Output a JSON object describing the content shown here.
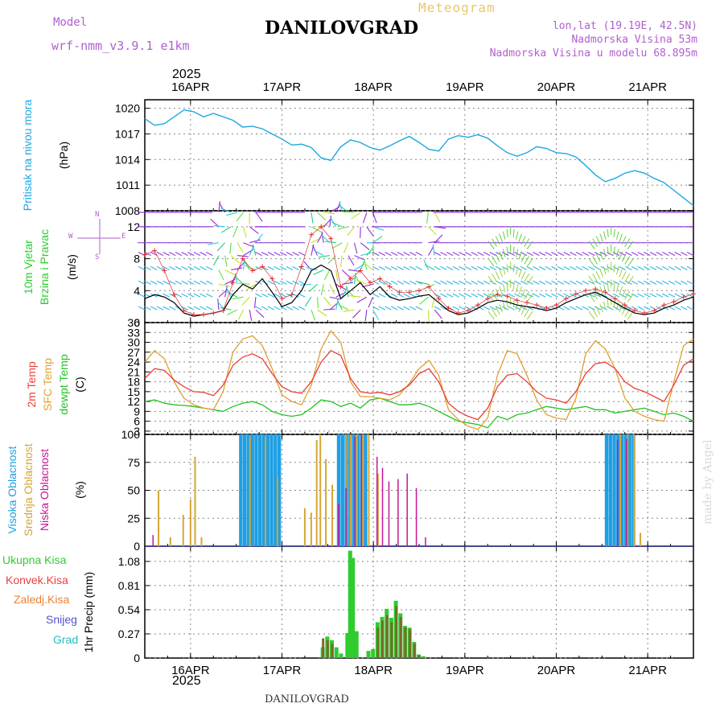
{
  "header": {
    "meteogram_label": "Meteogram",
    "station": "DANILOVGRAD",
    "model_label": "Model",
    "model_name": "wrf-nmm_v3.9.1 e1km",
    "lonlat": "lon,lat (19.19E, 42.5N)",
    "elevation": "Nadmorska Visina 53m",
    "model_elevation": "Nadmorska Visina u modelu 68.895m",
    "footer_station": "DANILOVGRAD",
    "credit": "made by Angel"
  },
  "colors": {
    "pressure": "#1ea7e1",
    "t2m": "#e8403a",
    "sfc": "#e0a030",
    "dewpt": "#22c422",
    "high_cloud": "#1e9fe3",
    "mid_cloud": "#d6a632",
    "low_cloud": "#c4169a",
    "total_precip": "#2ecc2e",
    "conv_precip": "#e84040",
    "frz_precip": "#f08030",
    "snow": "#5050d8",
    "hail": "#20c0c0",
    "wind_speed": "#000000",
    "gust": "#e03030",
    "compass": "#b060d0"
  },
  "chart_data": [
    {
      "type": "line",
      "panel": "pressure",
      "ylabel": "Pritisak na nivou mora",
      "unit": "(hPa)",
      "x_start_day": 15.5,
      "x_end_day": 21.5,
      "xticks": [
        "16APR",
        "17APR",
        "18APR",
        "19APR",
        "20APR",
        "21APR"
      ],
      "year": "2025",
      "yticks": [
        1008,
        1011,
        1014,
        1017,
        1020
      ],
      "ylim": [
        1008,
        1021
      ],
      "series": [
        {
          "values": [
            1018.8,
            1018.0,
            1018.2,
            1019.0,
            1019.8,
            1019.6,
            1019.0,
            1019.4,
            1019.0,
            1018.6,
            1017.8,
            1017.9,
            1017.6,
            1017.0,
            1016.4,
            1015.7,
            1015.8,
            1015.4,
            1014.2,
            1013.9,
            1015.5,
            1016.3,
            1016.0,
            1015.4,
            1015.1,
            1015.6,
            1016.2,
            1016.7,
            1016.0,
            1015.2,
            1015.0,
            1016.4,
            1016.8,
            1016.6,
            1016.9,
            1016.5,
            1015.6,
            1014.8,
            1014.4,
            1014.8,
            1015.5,
            1015.3,
            1014.8,
            1014.7,
            1014.3,
            1013.3,
            1012.2,
            1011.4,
            1011.8,
            1012.4,
            1012.7,
            1012.4,
            1011.8,
            1011.3,
            1010.4,
            1009.5,
            1008.6
          ]
        }
      ]
    },
    {
      "type": "line",
      "panel": "wind",
      "ylabel_1": "10m Vjetar",
      "ylabel_2": "Brzina i Pravac",
      "unit": "(m/s)",
      "compass": {
        "north": "N",
        "south": "S",
        "west": "W",
        "east": "E"
      },
      "yticks": [
        0,
        4,
        8,
        12
      ],
      "ylim": [
        0,
        14
      ],
      "series": [
        {
          "name": "speed",
          "values": [
            3.0,
            3.5,
            3.2,
            2.5,
            1.2,
            0.8,
            1.0,
            1.2,
            1.5,
            3.5,
            4.8,
            4.2,
            5.5,
            3.8,
            2.0,
            2.5,
            4.0,
            6.5,
            7.2,
            6.5,
            3.0,
            4.0,
            5.0,
            3.5,
            4.5,
            3.2,
            2.8,
            3.0,
            3.3,
            3.5,
            2.5,
            1.5,
            1.0,
            1.2,
            1.8,
            2.5,
            2.8,
            2.6,
            2.2,
            2.0,
            1.8,
            1.5,
            1.8,
            2.5,
            3.0,
            3.5,
            3.8,
            3.2,
            2.5,
            1.8,
            1.2,
            1.0,
            1.2,
            1.8,
            2.2,
            2.8,
            3.2
          ]
        },
        {
          "name": "gust",
          "values": [
            8.5,
            9.0,
            6.5,
            3.5,
            1.5,
            1.0,
            1.0,
            1.2,
            1.5,
            5.0,
            8.0,
            6.5,
            7.0,
            5.5,
            3.0,
            3.5,
            7.0,
            11.0,
            12.0,
            10.5,
            4.5,
            5.5,
            6.5,
            5.0,
            5.5,
            4.5,
            3.8,
            3.8,
            4.0,
            4.5,
            3.0,
            1.8,
            1.2,
            1.5,
            2.2,
            3.0,
            3.5,
            3.3,
            2.8,
            2.5,
            2.2,
            1.8,
            2.2,
            3.0,
            3.6,
            4.0,
            4.2,
            3.8,
            3.0,
            2.2,
            1.5,
            1.2,
            1.5,
            2.2,
            2.6,
            3.2,
            3.6
          ]
        }
      ]
    },
    {
      "type": "line",
      "panel": "temperature",
      "ylabel_1": "2m Temp",
      "ylabel_2": "SFC Temp",
      "ylabel_3": "dewpt Temp",
      "unit": "(C)",
      "yticks": [
        3,
        6,
        9,
        12,
        15,
        18,
        21,
        24,
        27,
        30,
        33,
        36
      ],
      "ylim": [
        2,
        36
      ],
      "series": [
        {
          "name": "2m Temp",
          "values": [
            19.0,
            22.0,
            21.5,
            18.5,
            16.5,
            15.0,
            14.8,
            13.8,
            17.0,
            23.0,
            25.5,
            26.5,
            25.0,
            20.5,
            16.5,
            15.0,
            14.5,
            18.0,
            24.0,
            27.5,
            26.0,
            19.0,
            15.0,
            14.5,
            14.8,
            14.0,
            15.0,
            17.0,
            20.5,
            22.0,
            18.0,
            11.5,
            9.0,
            7.5,
            6.5,
            10.0,
            16.5,
            20.0,
            20.5,
            18.0,
            15.0,
            13.0,
            12.5,
            11.5,
            15.0,
            20.5,
            23.5,
            24.0,
            22.0,
            18.0,
            16.0,
            15.0,
            13.5,
            12.0,
            17.0,
            23.0,
            25.0
          ]
        },
        {
          "name": "SFC Temp",
          "values": [
            24.0,
            27.5,
            25.0,
            18.0,
            13.0,
            11.0,
            10.0,
            9.5,
            15.0,
            27.0,
            31.0,
            32.0,
            29.0,
            22.0,
            14.0,
            12.0,
            11.0,
            17.0,
            28.0,
            33.5,
            30.0,
            18.0,
            13.5,
            13.5,
            13.0,
            12.5,
            14.0,
            17.5,
            22.0,
            24.5,
            20.0,
            9.5,
            6.5,
            4.5,
            3.5,
            7.0,
            20.0,
            27.5,
            26.5,
            20.0,
            12.5,
            8.0,
            7.0,
            6.5,
            13.0,
            26.5,
            30.5,
            28.0,
            22.0,
            13.0,
            9.0,
            7.5,
            6.5,
            6.0,
            18.0,
            29.0,
            31.0
          ]
        },
        {
          "name": "dewpt Temp",
          "values": [
            12.0,
            12.5,
            11.5,
            11.0,
            10.8,
            10.5,
            10.0,
            9.5,
            9.0,
            10.5,
            11.5,
            12.0,
            11.0,
            9.0,
            8.0,
            7.5,
            8.0,
            10.0,
            12.5,
            12.0,
            10.5,
            11.5,
            10.0,
            12.5,
            13.0,
            12.0,
            11.0,
            11.0,
            11.5,
            10.5,
            9.0,
            7.5,
            6.0,
            5.5,
            5.0,
            4.0,
            7.5,
            6.5,
            8.0,
            8.5,
            9.5,
            10.5,
            10.0,
            9.5,
            10.0,
            10.5,
            9.5,
            9.5,
            8.5,
            9.0,
            9.5,
            10.0,
            9.0,
            8.0,
            8.5,
            7.5,
            6.0
          ]
        }
      ]
    },
    {
      "type": "bar",
      "panel": "clouds",
      "ylabel_1": "Visoka Oblacnost",
      "ylabel_2": "Srednja Oblacnost",
      "ylabel_3": "Niska Oblacnost",
      "unit": "(%)",
      "yticks": [
        0,
        25,
        50,
        75,
        100
      ],
      "ylim": [
        0,
        100
      ],
      "series": [
        {
          "name": "Visoka Oblacnost",
          "groups": [
            [
              16.55,
              16.97,
              100
            ],
            [
              17.62,
              17.92,
              100
            ],
            [
              20.55,
              20.85,
              100
            ]
          ]
        },
        {
          "name": "Srednja Oblacnost",
          "points": [
            [
              15.65,
              50
            ],
            [
              15.78,
              8
            ],
            [
              15.92,
              28
            ],
            [
              16.0,
              42
            ],
            [
              16.05,
              80
            ],
            [
              16.12,
              8
            ],
            [
              16.65,
              98
            ],
            [
              16.82,
              98
            ],
            [
              16.95,
              62
            ],
            [
              17.25,
              34
            ],
            [
              17.32,
              30
            ],
            [
              17.38,
              95
            ],
            [
              17.42,
              100
            ],
            [
              17.48,
              78
            ],
            [
              17.55,
              55
            ],
            [
              17.7,
              100
            ],
            [
              17.75,
              100
            ],
            [
              17.82,
              100
            ],
            [
              17.88,
              100
            ],
            [
              17.95,
              100
            ],
            [
              18.05,
              65
            ],
            [
              20.7,
              100
            ],
            [
              20.78,
              100
            ],
            [
              20.85,
              100
            ],
            [
              20.92,
              12
            ]
          ]
        },
        {
          "name": "Niska Oblacnost",
          "points": [
            [
              15.57,
              10
            ],
            [
              17.6,
              38
            ],
            [
              17.68,
              52
            ],
            [
              17.78,
              98
            ],
            [
              17.85,
              100
            ],
            [
              18.02,
              80
            ],
            [
              18.08,
              70
            ],
            [
              18.15,
              58
            ],
            [
              18.25,
              60
            ],
            [
              18.35,
              65
            ],
            [
              18.45,
              52
            ],
            [
              18.55,
              8
            ],
            [
              20.65,
              95
            ],
            [
              20.75,
              96
            ]
          ]
        }
      ]
    },
    {
      "type": "bar",
      "panel": "precip",
      "legend": [
        "Ukupna Kisa",
        "Konvek.Kisa",
        "Zaledj.Kisa",
        "Snijeg",
        "Grad"
      ],
      "ylabel": "1hr Precip (mm)",
      "yticks": [
        0,
        0.27,
        0.54,
        0.81,
        1.08
      ],
      "ylim": [
        0,
        1.25
      ],
      "series": [
        {
          "name": "Ukupna Kisa",
          "points": [
            [
              17.45,
              0.12
            ],
            [
              17.5,
              0.24
            ],
            [
              17.55,
              0.2
            ],
            [
              17.6,
              0.12
            ],
            [
              17.65,
              0.05
            ],
            [
              17.72,
              0.28
            ],
            [
              17.75,
              1.2
            ],
            [
              17.78,
              1.12
            ],
            [
              17.82,
              0.3
            ],
            [
              17.95,
              0.08
            ],
            [
              18.0,
              0.1
            ],
            [
              18.05,
              0.4
            ],
            [
              18.1,
              0.46
            ],
            [
              18.15,
              0.55
            ],
            [
              18.2,
              0.45
            ],
            [
              18.25,
              0.64
            ],
            [
              18.3,
              0.5
            ],
            [
              18.35,
              0.36
            ],
            [
              18.4,
              0.34
            ],
            [
              18.45,
              0.18
            ],
            [
              18.5,
              0.04
            ],
            [
              18.55,
              0.02
            ]
          ]
        },
        {
          "name": "Konvek.Kisa",
          "points": [
            [
              17.45,
              0.22
            ],
            [
              17.5,
              0.2
            ],
            [
              17.55,
              0.16
            ],
            [
              18.05,
              0.34
            ],
            [
              18.1,
              0.42
            ],
            [
              18.15,
              0.48
            ],
            [
              18.2,
              0.4
            ],
            [
              18.25,
              0.58
            ],
            [
              18.3,
              0.46
            ],
            [
              18.35,
              0.34
            ],
            [
              18.4,
              0.32
            ],
            [
              18.45,
              0.16
            ],
            [
              18.5,
              0.03
            ]
          ]
        }
      ]
    }
  ]
}
